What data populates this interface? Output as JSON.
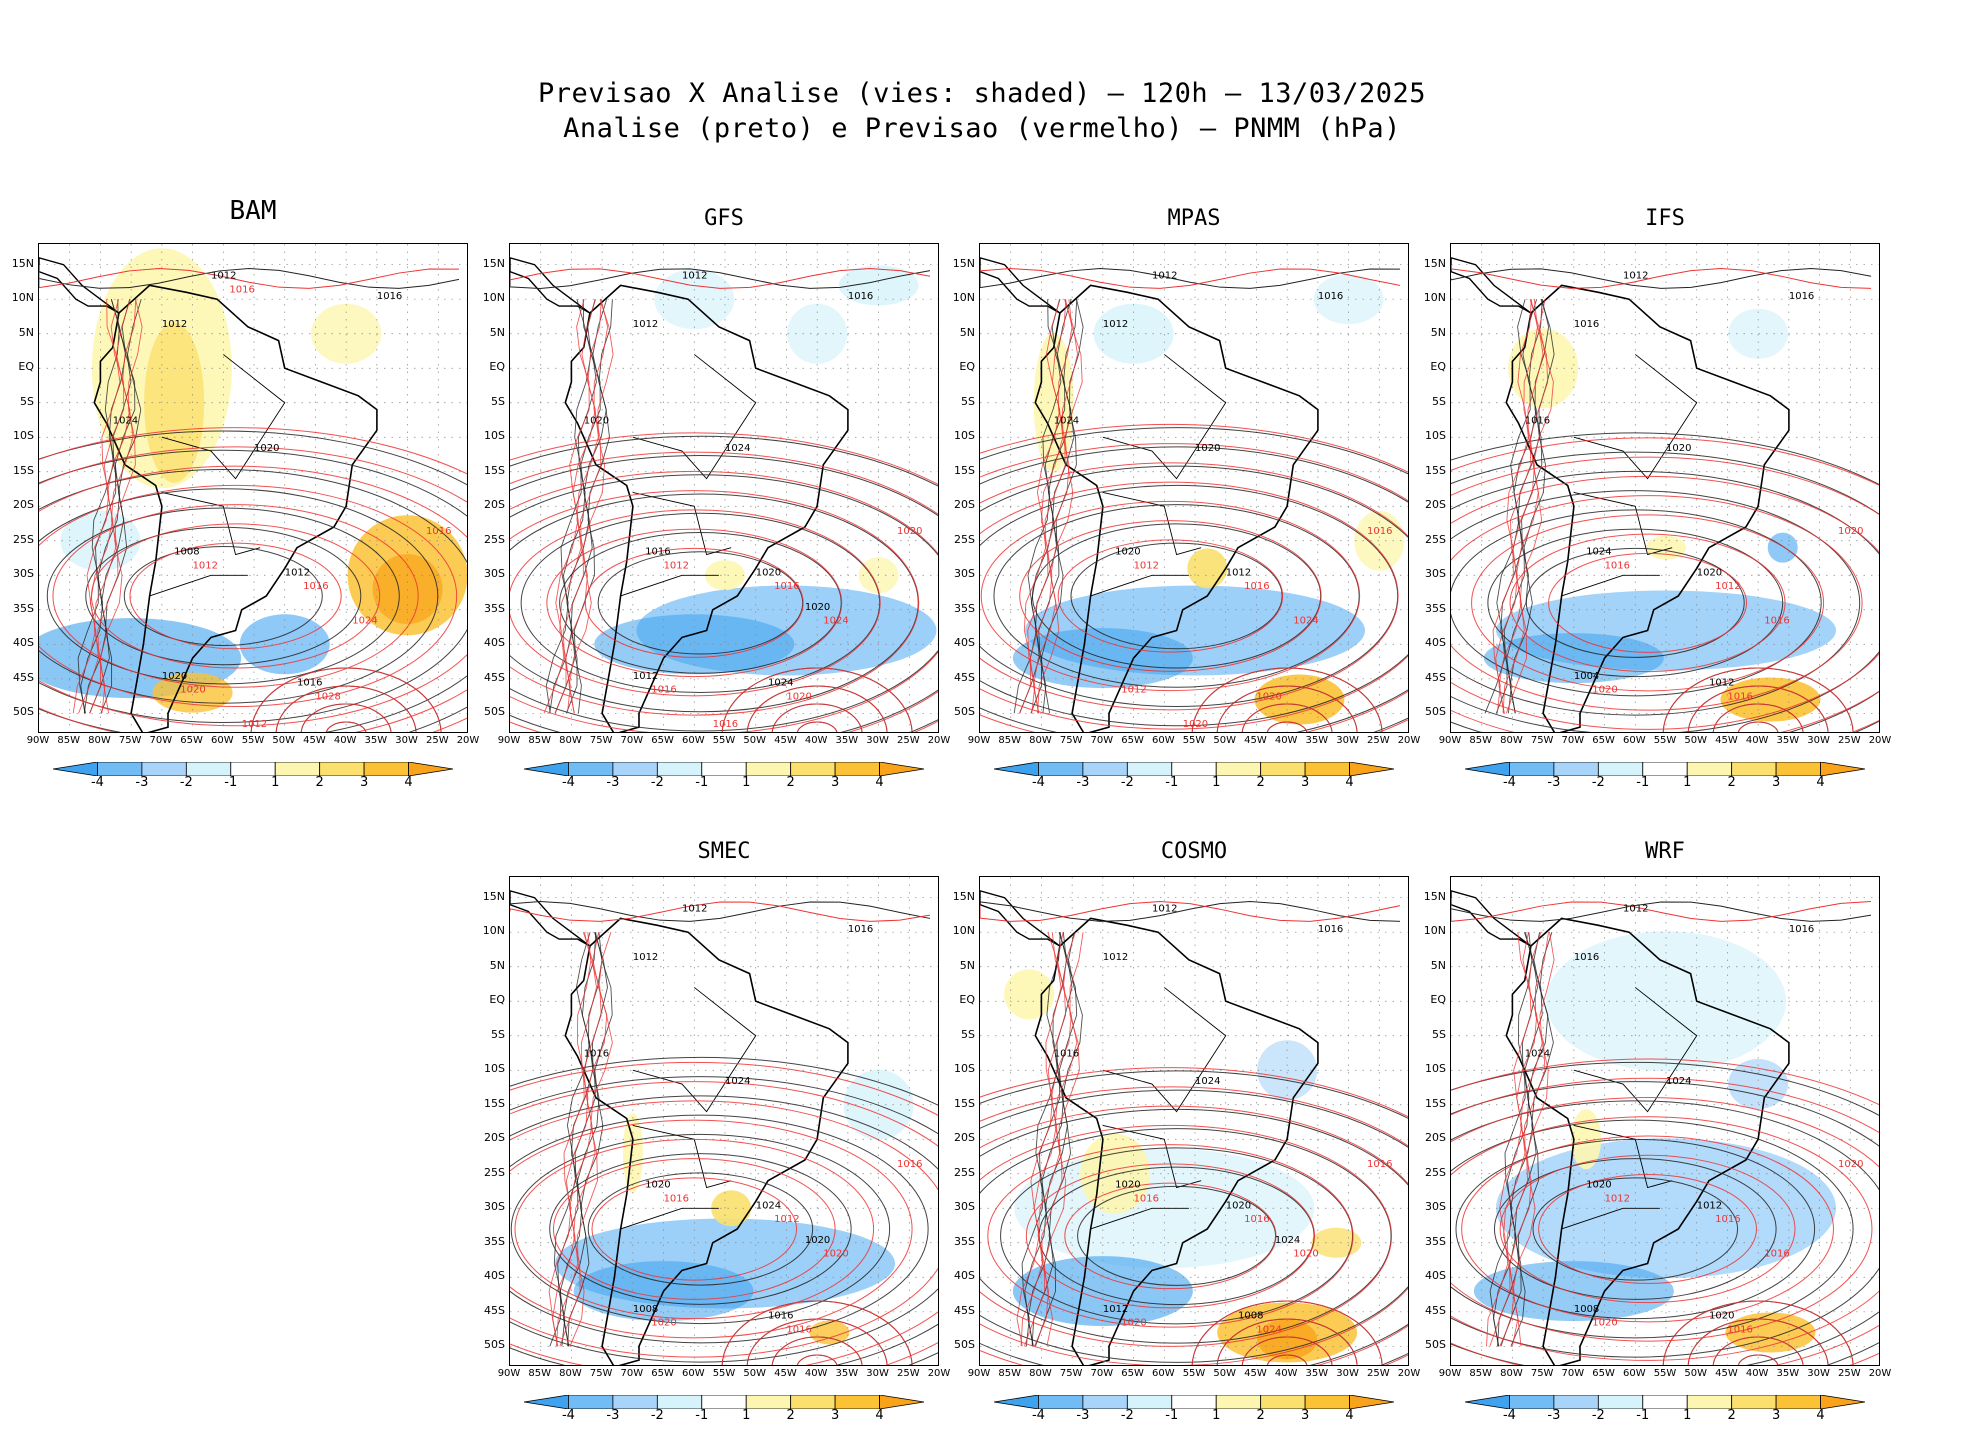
{
  "title_line1": "Previsao X Analise (vies: shaded) – 120h – 13/03/2025",
  "title_line2": "Analise (preto) e Previsao (vermelho) – PNMM (hPa)",
  "lat_labels": [
    "15N",
    "10N",
    "5N",
    "EQ",
    "5S",
    "10S",
    "15S",
    "20S",
    "25S",
    "30S",
    "35S",
    "40S",
    "45S",
    "50S"
  ],
  "lon_labels": [
    "90W",
    "85W",
    "80W",
    "75W",
    "70W",
    "65W",
    "60W",
    "55W",
    "50W",
    "45W",
    "40W",
    "35W",
    "30W",
    "25W",
    "20W"
  ],
  "colorbar": {
    "labels": [
      "-4",
      "-3",
      "-2",
      "-1",
      "1",
      "2",
      "3",
      "4"
    ],
    "colors": [
      "#3ea2ee",
      "#72bcf5",
      "#a9d4f9",
      "#d6f2fb",
      "#ffffff",
      "#fdf6b0",
      "#fbe06e",
      "#fbc236",
      "#f9a31a"
    ]
  },
  "panels": [
    {
      "name": "BAM",
      "contours_black": [
        "1012",
        "1016",
        "1012",
        "1024",
        "1020",
        "1008",
        "1012",
        "1020",
        "1016"
      ],
      "contours_red": [
        "1012",
        "1016",
        "1020",
        "1028",
        "1024",
        "1016",
        "1012",
        "1016"
      ]
    },
    {
      "name": "GFS",
      "contours_black": [
        "1012",
        "1016",
        "1012",
        "1020",
        "1024",
        "1016",
        "1020",
        "1012",
        "1024",
        "1020"
      ],
      "contours_red": [
        "1012",
        "1016",
        "1016",
        "1020",
        "1024",
        "1020",
        "1016"
      ]
    },
    {
      "name": "MPAS",
      "contours_black": [
        "1012",
        "1016",
        "1012",
        "1024",
        "1020",
        "1020",
        "1012"
      ],
      "contours_red": [
        "1012",
        "1016",
        "1012",
        "1020",
        "1024",
        "1016",
        "1020"
      ]
    },
    {
      "name": "IFS",
      "contours_black": [
        "1012",
        "1016",
        "1016",
        "1016",
        "1020",
        "1024",
        "1020",
        "1004",
        "1012"
      ],
      "contours_red": [
        "1016",
        "1012",
        "1020",
        "1016",
        "1016",
        "1020"
      ]
    },
    {
      "name": "SMEC",
      "contours_black": [
        "1012",
        "1016",
        "1012",
        "1016",
        "1024",
        "1020",
        "1024",
        "1008",
        "1016",
        "1020"
      ],
      "contours_red": [
        "1016",
        "1012",
        "1020",
        "1016",
        "1020",
        "1016"
      ]
    },
    {
      "name": "COSMO",
      "contours_black": [
        "1012",
        "1016",
        "1012",
        "1016",
        "1024",
        "1020",
        "1020",
        "1012",
        "1008",
        "1024"
      ],
      "contours_red": [
        "1016",
        "1016",
        "1020",
        "1024",
        "1020",
        "1016"
      ]
    },
    {
      "name": "WRF",
      "contours_black": [
        "1012",
        "1016",
        "1016",
        "1024",
        "1024",
        "1020",
        "1012",
        "1008",
        "1020"
      ],
      "contours_red": [
        "1012",
        "1016",
        "1020",
        "1016",
        "1016",
        "1020"
      ]
    }
  ]
}
